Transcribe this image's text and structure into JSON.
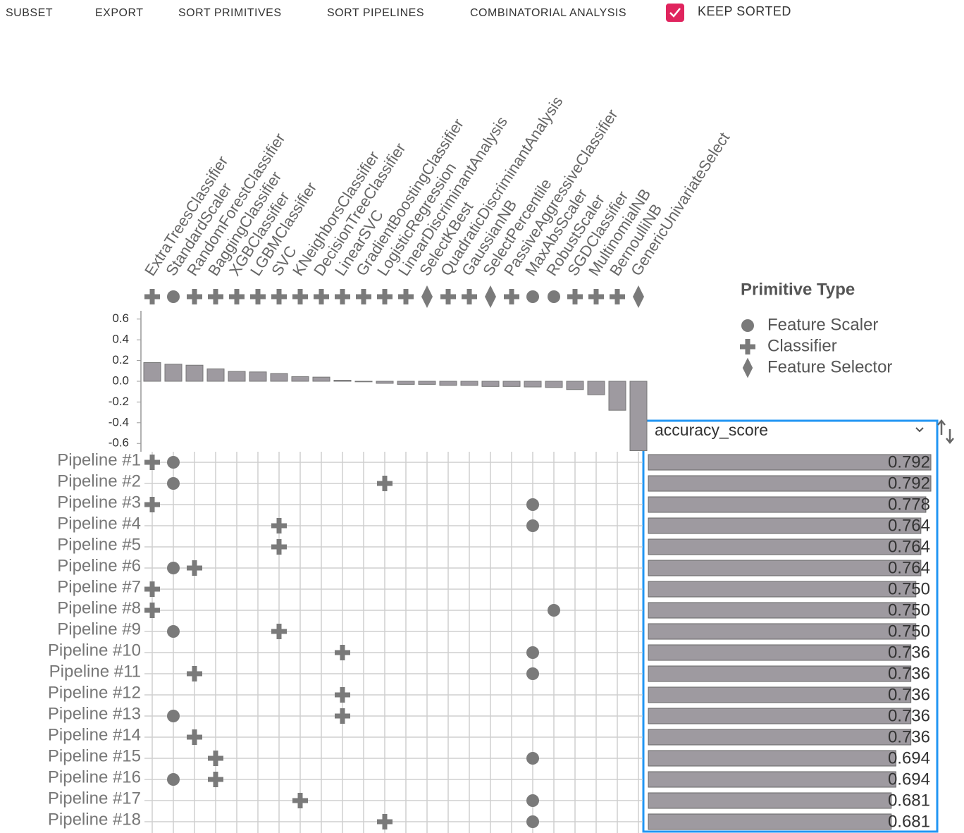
{
  "toolbar": {
    "buttons": [
      "SUBSET",
      "EXPORT",
      "SORT PRIMITIVES",
      "SORT PIPELINES",
      "COMBINATORIAL ANALYSIS"
    ],
    "checkbox": {
      "label": "KEEP SORTED",
      "checked": true
    }
  },
  "legend": {
    "title": "Primitive Type",
    "items": [
      {
        "name": "Feature Scaler",
        "shape": "circle"
      },
      {
        "name": "Classifier",
        "shape": "cross"
      },
      {
        "name": "Feature Selector",
        "shape": "diamond"
      }
    ]
  },
  "primitives": [
    {
      "name": "ExtraTreesClassifier",
      "type": "Classifier"
    },
    {
      "name": "StandardScaler",
      "type": "Feature Scaler"
    },
    {
      "name": "RandomForestClassifier",
      "type": "Classifier"
    },
    {
      "name": "BaggingClassifier",
      "type": "Classifier"
    },
    {
      "name": "XGBClassifier",
      "type": "Classifier"
    },
    {
      "name": "LGBMClassifier",
      "type": "Classifier"
    },
    {
      "name": "SVC",
      "type": "Classifier"
    },
    {
      "name": "KNeighborsClassifier",
      "type": "Classifier"
    },
    {
      "name": "DecisionTreeClassifier",
      "type": "Classifier"
    },
    {
      "name": "LinearSVC",
      "type": "Classifier"
    },
    {
      "name": "GradientBoostingClassifier",
      "type": "Classifier"
    },
    {
      "name": "LogisticRegression",
      "type": "Classifier"
    },
    {
      "name": "LinearDiscriminantAnalysis",
      "type": "Classifier"
    },
    {
      "name": "SelectKBest",
      "type": "Feature Selector"
    },
    {
      "name": "QuadraticDiscriminantAnalysis",
      "type": "Classifier"
    },
    {
      "name": "GaussianNB",
      "type": "Classifier"
    },
    {
      "name": "SelectPercentile",
      "type": "Feature Selector"
    },
    {
      "name": "PassiveAggressiveClassifier",
      "type": "Classifier"
    },
    {
      "name": "MaxAbsScaler",
      "type": "Feature Scaler"
    },
    {
      "name": "RobustScaler",
      "type": "Feature Scaler"
    },
    {
      "name": "SGDClassifier",
      "type": "Classifier"
    },
    {
      "name": "MultinomialNB",
      "type": "Classifier"
    },
    {
      "name": "BernoulliNB",
      "type": "Classifier"
    },
    {
      "name": "GenericUnivariateSelect",
      "type": "Feature Selector"
    }
  ],
  "importance": {
    "values": [
      0.18,
      0.165,
      0.155,
      0.12,
      0.095,
      0.09,
      0.075,
      0.045,
      0.04,
      0.01,
      -0.003,
      -0.02,
      -0.03,
      -0.03,
      -0.04,
      -0.04,
      -0.05,
      -0.05,
      -0.055,
      -0.06,
      -0.08,
      -0.13,
      -0.28,
      -0.67
    ],
    "ylim": [
      -0.68,
      0.68
    ],
    "yticks": [
      0.6,
      0.4,
      0.2,
      {
        "value": 0,
        "label": "0.0"
      },
      -0.2,
      -0.4,
      -0.6
    ]
  },
  "metric": "accuracy_score",
  "pipelines": [
    {
      "name": "Pipeline #1",
      "primitives": [
        0,
        1
      ],
      "score": 0.792
    },
    {
      "name": "Pipeline #2",
      "primitives": [
        1,
        11
      ],
      "score": 0.792
    },
    {
      "name": "Pipeline #3",
      "primitives": [
        0,
        18
      ],
      "score": 0.778
    },
    {
      "name": "Pipeline #4",
      "primitives": [
        6,
        18
      ],
      "score": 0.764
    },
    {
      "name": "Pipeline #5",
      "primitives": [
        6
      ],
      "score": 0.764
    },
    {
      "name": "Pipeline #6",
      "primitives": [
        1,
        2
      ],
      "score": 0.764
    },
    {
      "name": "Pipeline #7",
      "primitives": [
        0
      ],
      "score": 0.75,
      "score_label": "0.750"
    },
    {
      "name": "Pipeline #8",
      "primitives": [
        0,
        19
      ],
      "score": 0.75,
      "score_label": "0.750"
    },
    {
      "name": "Pipeline #9",
      "primitives": [
        1,
        6
      ],
      "score": 0.75,
      "score_label": "0.750"
    },
    {
      "name": "Pipeline #10",
      "primitives": [
        9,
        18
      ],
      "score": 0.736
    },
    {
      "name": "Pipeline #11",
      "primitives": [
        2,
        18
      ],
      "score": 0.736
    },
    {
      "name": "Pipeline #12",
      "primitives": [
        9
      ],
      "score": 0.736
    },
    {
      "name": "Pipeline #13",
      "primitives": [
        1,
        9
      ],
      "score": 0.736
    },
    {
      "name": "Pipeline #14",
      "primitives": [
        2
      ],
      "score": 0.736
    },
    {
      "name": "Pipeline #15",
      "primitives": [
        3,
        18
      ],
      "score": 0.694
    },
    {
      "name": "Pipeline #16",
      "primitives": [
        1,
        3
      ],
      "score": 0.694
    },
    {
      "name": "Pipeline #17",
      "primitives": [
        7,
        18
      ],
      "score": 0.681
    },
    {
      "name": "Pipeline #18",
      "primitives": [
        11,
        18
      ],
      "score": 0.681
    }
  ]
}
